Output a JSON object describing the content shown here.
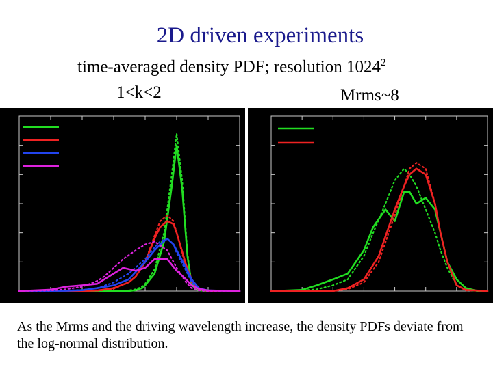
{
  "slide": {
    "title": "2D driven experiments",
    "subtitle_main": "time-averaged density PDF; resolution 1024",
    "subtitle_sup": "2",
    "left_label": "1<k<2",
    "right_label": "Mrms~8",
    "caption": "As the Mrms and the driving wavelength increase, the density PDFs deviate from the log-normal distribution."
  },
  "chart_data": [
    {
      "type": "line",
      "xscale": "log",
      "xlim": [
        1e-05,
        100
      ],
      "ylim": [
        0,
        0.6
      ],
      "grid": false,
      "legend_position": "top-left",
      "series": [
        {
          "color": "#22dd22",
          "style": "solid",
          "x": [
            1e-05,
            0.001,
            0.01,
            0.03,
            0.05,
            0.08,
            0.1,
            0.2,
            0.4,
            0.7,
            1.0,
            1.5,
            2.2,
            3.0,
            5.0,
            10,
            100
          ],
          "y": [
            0,
            0,
            0,
            0,
            0.003,
            0.01,
            0.02,
            0.06,
            0.17,
            0.36,
            0.5,
            0.35,
            0.12,
            0.02,
            0.002,
            0,
            0
          ]
        },
        {
          "color": "#22dd22",
          "style": "dotted",
          "x": [
            1e-05,
            0.001,
            0.01,
            0.03,
            0.05,
            0.08,
            0.1,
            0.2,
            0.4,
            0.7,
            1.0,
            1.5,
            2.2,
            3.0,
            5.0,
            10,
            100
          ],
          "y": [
            0,
            0,
            0,
            0.002,
            0.006,
            0.015,
            0.025,
            0.075,
            0.2,
            0.4,
            0.54,
            0.38,
            0.13,
            0.025,
            0.002,
            0,
            0
          ]
        },
        {
          "color": "#ee2222",
          "style": "solid",
          "x": [
            1e-05,
            0.001,
            0.003,
            0.01,
            0.03,
            0.05,
            0.1,
            0.2,
            0.3,
            0.5,
            0.8,
            1.0,
            2.0,
            3.0,
            5.0,
            10,
            100
          ],
          "y": [
            0,
            0,
            0.002,
            0.01,
            0.03,
            0.05,
            0.1,
            0.18,
            0.22,
            0.24,
            0.23,
            0.2,
            0.09,
            0.04,
            0.01,
            0,
            0
          ]
        },
        {
          "color": "#ee2222",
          "style": "dotted",
          "x": [
            1e-05,
            0.001,
            0.003,
            0.01,
            0.03,
            0.05,
            0.1,
            0.2,
            0.3,
            0.5,
            0.8,
            1.0,
            2.0,
            3.0,
            5.0,
            10,
            100
          ],
          "y": [
            0,
            0,
            0.001,
            0.008,
            0.03,
            0.05,
            0.1,
            0.19,
            0.24,
            0.26,
            0.24,
            0.2,
            0.08,
            0.03,
            0.006,
            0,
            0
          ]
        },
        {
          "color": "#2244ee",
          "style": "solid",
          "x": [
            1e-05,
            0.0003,
            0.001,
            0.003,
            0.01,
            0.03,
            0.1,
            0.2,
            0.3,
            0.5,
            0.8,
            1.0,
            2.0,
            3.0,
            5.0,
            10,
            100
          ],
          "y": [
            0,
            0.001,
            0.003,
            0.01,
            0.02,
            0.04,
            0.1,
            0.14,
            0.16,
            0.18,
            0.16,
            0.14,
            0.08,
            0.04,
            0.01,
            0.002,
            0
          ]
        },
        {
          "color": "#2244ee",
          "style": "dotted",
          "x": [
            1e-05,
            0.0003,
            0.001,
            0.003,
            0.01,
            0.03,
            0.1,
            0.2,
            0.3,
            0.5,
            0.8,
            1.0,
            2.0,
            3.0,
            5.0,
            10,
            100
          ],
          "y": [
            0,
            0.002,
            0.004,
            0.01,
            0.03,
            0.06,
            0.11,
            0.15,
            0.17,
            0.18,
            0.16,
            0.13,
            0.07,
            0.03,
            0.008,
            0.001,
            0
          ]
        },
        {
          "color": "#dd22dd",
          "style": "solid",
          "x": [
            1e-05,
            0.0001,
            0.0003,
            0.001,
            0.003,
            0.005,
            0.01,
            0.02,
            0.05,
            0.1,
            0.2,
            0.5,
            1.0,
            2.0,
            3.0,
            5.0,
            10,
            100
          ],
          "y": [
            0,
            0.005,
            0.015,
            0.02,
            0.025,
            0.04,
            0.06,
            0.08,
            0.07,
            0.08,
            0.11,
            0.11,
            0.07,
            0.04,
            0.02,
            0.008,
            0.002,
            0
          ]
        },
        {
          "color": "#dd22dd",
          "style": "dotted",
          "x": [
            1e-05,
            0.0001,
            0.0003,
            0.001,
            0.003,
            0.005,
            0.01,
            0.02,
            0.05,
            0.1,
            0.2,
            0.5,
            1.0,
            2.0,
            3.0,
            5.0,
            10,
            100
          ],
          "y": [
            0,
            0.002,
            0.006,
            0.015,
            0.035,
            0.05,
            0.08,
            0.11,
            0.14,
            0.16,
            0.17,
            0.14,
            0.08,
            0.03,
            0.01,
            0.002,
            0,
            0
          ]
        }
      ]
    },
    {
      "type": "line",
      "xscale": "log",
      "xlim": [
        1e-05,
        100
      ],
      "ylim": [
        0,
        0.3
      ],
      "grid": false,
      "legend_position": "top-right",
      "series": [
        {
          "color": "#22dd22",
          "style": "solid",
          "x": [
            1e-05,
            0.0001,
            0.0003,
            0.001,
            0.003,
            0.01,
            0.02,
            0.05,
            0.1,
            0.2,
            0.3,
            0.5,
            1.0,
            2.0,
            3.0,
            5.0,
            10,
            20,
            50,
            100
          ],
          "y": [
            0,
            0.002,
            0.01,
            0.02,
            0.03,
            0.07,
            0.11,
            0.14,
            0.12,
            0.17,
            0.17,
            0.15,
            0.16,
            0.14,
            0.1,
            0.05,
            0.02,
            0.005,
            0,
            0
          ]
        },
        {
          "color": "#22dd22",
          "style": "dotted",
          "x": [
            1e-05,
            0.0001,
            0.0003,
            0.001,
            0.003,
            0.01,
            0.02,
            0.05,
            0.1,
            0.2,
            0.3,
            0.5,
            1.0,
            2.0,
            3.0,
            5.0,
            10,
            20,
            50,
            100
          ],
          "y": [
            0,
            0.001,
            0.003,
            0.01,
            0.02,
            0.06,
            0.1,
            0.15,
            0.19,
            0.21,
            0.2,
            0.18,
            0.14,
            0.1,
            0.07,
            0.04,
            0.01,
            0.002,
            0,
            0
          ]
        },
        {
          "color": "#ee2222",
          "style": "solid",
          "x": [
            1e-05,
            0.001,
            0.003,
            0.01,
            0.03,
            0.1,
            0.2,
            0.3,
            0.5,
            1.0,
            2.0,
            3.0,
            5.0,
            10,
            20,
            100
          ],
          "y": [
            0,
            0,
            0.005,
            0.02,
            0.06,
            0.14,
            0.18,
            0.2,
            0.21,
            0.2,
            0.15,
            0.1,
            0.05,
            0.01,
            0.002,
            0
          ]
        },
        {
          "color": "#ee2222",
          "style": "dotted",
          "x": [
            1e-05,
            0.001,
            0.003,
            0.01,
            0.03,
            0.1,
            0.2,
            0.3,
            0.5,
            1.0,
            2.0,
            3.0,
            5.0,
            10,
            20,
            100
          ],
          "y": [
            0,
            0,
            0.003,
            0.015,
            0.05,
            0.13,
            0.18,
            0.21,
            0.22,
            0.21,
            0.15,
            0.1,
            0.05,
            0.01,
            0.001,
            0
          ]
        }
      ]
    }
  ]
}
